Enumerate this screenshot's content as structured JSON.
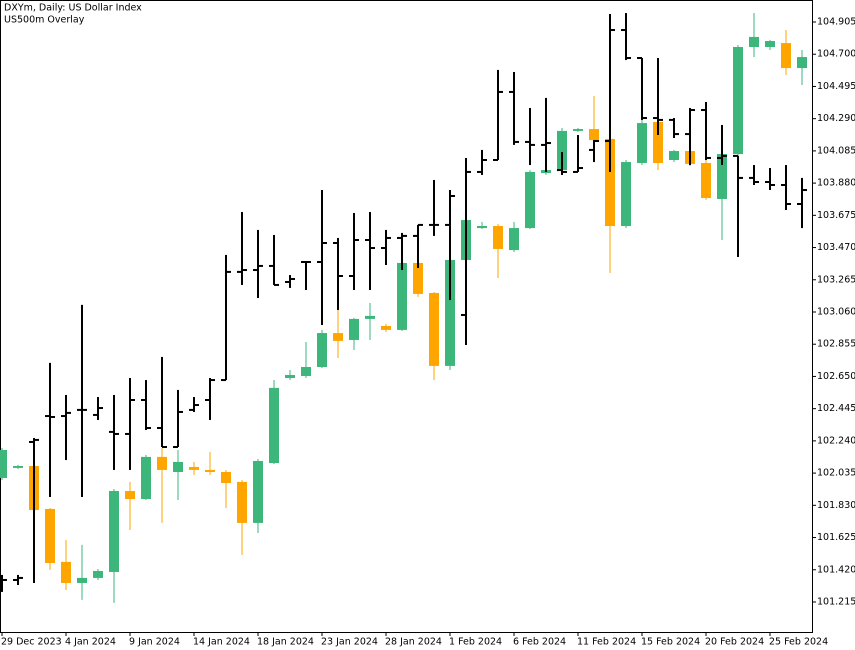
{
  "chart_data": {
    "type": "candlestick",
    "title": "DXYm, Daily:  US Dollar Index",
    "subtitle": "US500m Overlay",
    "categories": [
      "29 Dec 2023",
      null,
      null,
      null,
      "4 Jan 2024",
      null,
      null,
      null,
      "9 Jan 2024",
      null,
      null,
      null,
      "14 Jan 2024",
      null,
      null,
      null,
      "18 Jan 2024",
      null,
      null,
      null,
      "23 Jan 2024",
      null,
      null,
      null,
      "28 Jan 2024",
      null,
      null,
      null,
      "1 Feb 2024",
      null,
      null,
      null,
      "6 Feb 2024",
      null,
      null,
      null,
      "11 Feb 2024",
      null,
      null,
      null,
      "15 Feb 2024",
      null,
      null,
      null,
      "20 Feb 2024",
      null,
      null,
      null,
      "25 Feb 2024",
      null,
      null
    ],
    "ylim": [
      101.024,
      105.045
    ],
    "yticks": [
      101.215,
      {
        "value": 101.42,
        "label": "101.420"
      },
      101.625,
      {
        "value": 101.83,
        "label": "101.830"
      },
      102.035,
      {
        "value": 102.24,
        "label": "102.240"
      },
      102.445,
      {
        "value": 102.65,
        "label": "102.650"
      },
      102.855,
      {
        "value": 103.06,
        "label": "103.060"
      },
      103.265,
      {
        "value": 103.47,
        "label": "103.470"
      },
      103.675,
      {
        "value": 103.88,
        "label": "103.880"
      },
      104.085,
      {
        "value": 104.29,
        "label": "104.290"
      },
      104.495,
      {
        "value": 104.7,
        "label": "104.700"
      },
      104.905
    ],
    "series": [
      {
        "type": "candlestick",
        "up_color": "#3cb67b",
        "down_color": "#ffa500",
        "open": [
          102.004,
          102.068,
          102.08,
          101.807,
          101.47,
          101.336,
          101.368,
          101.406,
          101.921,
          101.87,
          102.138,
          102.042,
          102.074,
          102.055,
          102.042,
          101.979,
          101.718,
          102.099,
          102.64,
          102.653,
          102.71,
          102.926,
          102.882,
          103.016,
          102.971,
          102.946,
          103.372,
          103.181,
          102.717,
          103.391,
          103.594,
          103.607,
          103.454,
          103.594,
          103.944,
          103.963,
          104.212,
          104.224,
          104.161,
          103.607,
          104.008,
          104.269,
          104.027,
          104.084,
          104.008,
          103.779,
          104.065,
          104.746,
          104.746,
          104.771,
          104.612
        ],
        "high": [
          102.195,
          102.087,
          102.093,
          101.813,
          101.61,
          101.578,
          101.425,
          101.934,
          101.979,
          102.15,
          102.195,
          102.182,
          102.106,
          102.169,
          102.055,
          101.991,
          102.125,
          102.627,
          102.691,
          102.869,
          102.946,
          103.162,
          103.022,
          103.117,
          102.984,
          103.404,
          103.391,
          103.187,
          103.404,
          103.658,
          103.633,
          103.62,
          103.633,
          103.963,
          103.995,
          104.231,
          104.231,
          104.434,
          104.173,
          104.027,
          104.282,
          104.371,
          104.091,
          104.358,
          104.027,
          104.078,
          104.759,
          104.962,
          104.791,
          104.854,
          104.727
        ],
        "low": [
          101.991,
          102.061,
          101.61,
          101.419,
          101.291,
          101.228,
          101.355,
          101.209,
          101.673,
          101.864,
          101.718,
          101.864,
          102.023,
          102.023,
          101.813,
          101.514,
          101.654,
          102.093,
          102.627,
          102.64,
          102.704,
          102.767,
          102.818,
          102.882,
          102.933,
          102.939,
          103.156,
          102.627,
          102.691,
          103.378,
          103.588,
          103.276,
          103.442,
          103.588,
          103.932,
          103.951,
          104.205,
          104.142,
          103.308,
          103.594,
          103.995,
          103.963,
          104.014,
          103.989,
          103.773,
          103.518,
          104.053,
          104.682,
          104.727,
          104.568,
          104.504
        ],
        "close": [
          102.182,
          102.08,
          101.8,
          101.463,
          101.336,
          101.368,
          101.412,
          101.921,
          101.87,
          102.138,
          102.055,
          102.106,
          102.055,
          102.042,
          101.972,
          101.718,
          102.112,
          102.577,
          102.659,
          102.71,
          102.926,
          102.876,
          103.016,
          103.035,
          102.946,
          103.372,
          103.175,
          102.717,
          103.391,
          103.645,
          103.607,
          103.461,
          103.594,
          103.951,
          103.963,
          104.212,
          104.224,
          104.154,
          103.607,
          104.014,
          104.262,
          104.008,
          104.084,
          104.002,
          103.785,
          104.065,
          104.746,
          104.81,
          104.784,
          104.612,
          104.682
        ]
      },
      {
        "type": "ohlc",
        "color": "#000000",
        "open": [
          101.368,
          101.355,
          102.233,
          102.398,
          102.398,
          102.437,
          102.405,
          102.297,
          102.284,
          102.5,
          102.322,
          102.201,
          102.437,
          102.5,
          102.627,
          103.315,
          103.327,
          103.353,
          103.251,
          103.378,
          103.378,
          103.499,
          103.289,
          103.518,
          103.467,
          103.531,
          103.544,
          103.614,
          103.614,
          103.041,
          103.951,
          104.027,
          104.46,
          104.142,
          104.123,
          103.963,
          103.951,
          104.091,
          104.148,
          104.854,
          104.676,
          104.294,
          104.282,
          104.192,
          104.345,
          104.04,
          104.053,
          103.913,
          103.887,
          103.868,
          103.747
        ],
        "high": [
          101.387,
          101.387,
          102.258,
          102.736,
          102.532,
          103.105,
          102.519,
          102.532,
          102.64,
          102.627,
          102.774,
          102.564,
          102.519,
          102.64,
          103.423,
          103.696,
          103.582,
          103.55,
          103.295,
          103.378,
          103.836,
          103.531,
          103.69,
          103.696,
          103.582,
          103.563,
          103.614,
          103.9,
          103.836,
          104.04,
          104.091,
          104.6,
          104.587,
          104.358,
          104.422,
          104.078,
          104.186,
          104.154,
          104.956,
          104.962,
          104.676,
          104.676,
          104.294,
          104.358,
          104.396,
          104.25,
          104.053,
          103.995,
          103.976,
          103.995,
          103.913
        ],
        "low": [
          101.279,
          101.323,
          101.336,
          101.883,
          102.118,
          101.883,
          102.373,
          102.055,
          102.055,
          102.309,
          102.201,
          102.201,
          102.424,
          102.373,
          102.627,
          103.232,
          103.149,
          103.232,
          103.213,
          103.2,
          102.977,
          103.073,
          103.2,
          103.2,
          103.359,
          103.327,
          103.34,
          103.544,
          103.136,
          102.85,
          103.932,
          104.027,
          104.123,
          103.995,
          103.951,
          103.932,
          103.951,
          104.014,
          103.951,
          104.663,
          104.282,
          104.186,
          104.167,
          103.995,
          104.027,
          103.995,
          103.41,
          103.868,
          103.836,
          103.709,
          103.594
        ],
        "close": [
          101.355,
          101.368,
          102.246,
          102.392,
          102.418,
          102.437,
          102.449,
          102.284,
          102.5,
          102.322,
          102.201,
          102.424,
          102.468,
          102.627,
          103.315,
          103.327,
          103.353,
          103.232,
          103.27,
          103.378,
          103.499,
          103.289,
          103.518,
          103.467,
          103.531,
          103.544,
          103.614,
          103.614,
          103.798,
          103.951,
          104.027,
          104.46,
          104.142,
          104.123,
          104.135,
          103.951,
          103.976,
          104.148,
          104.854,
          104.676,
          104.294,
          104.282,
          104.192,
          104.345,
          104.04,
          104.053,
          103.913,
          103.887,
          103.868,
          103.747,
          103.836
        ]
      }
    ]
  }
}
